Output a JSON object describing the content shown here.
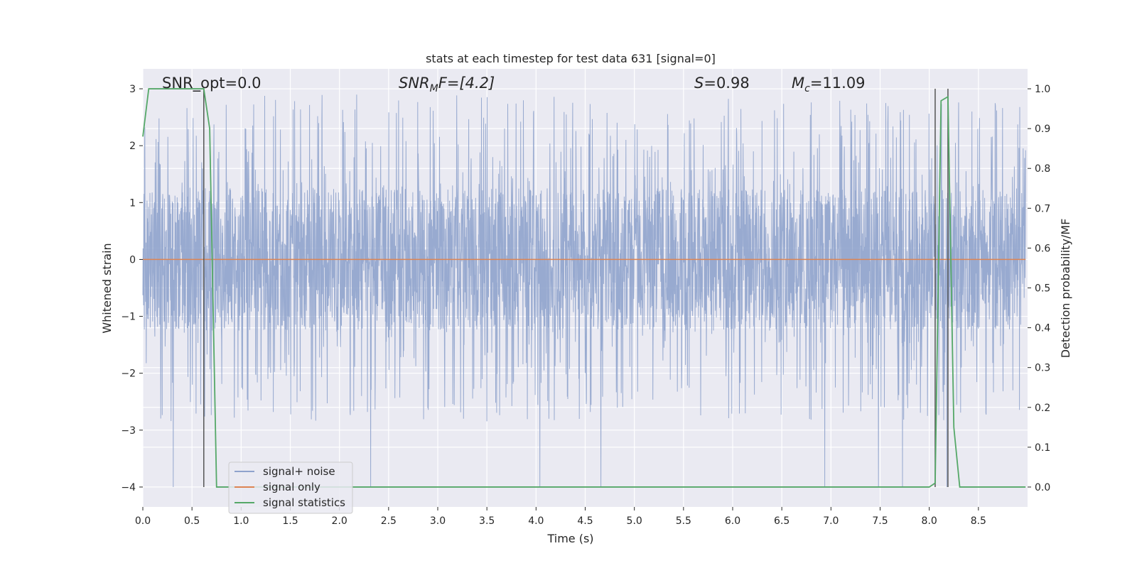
{
  "chart_data": {
    "type": "line",
    "title": "stats at each timestep for test data 631 [signal=0]",
    "xlabel": "Time (s)",
    "ylabel": "Whitened strain",
    "y2label": "Detection probability/MF",
    "xlim": [
      0.0,
      9.0
    ],
    "ylim": [
      -4.35,
      3.35
    ],
    "y2lim": [
      -0.05,
      1.05
    ],
    "xticks": [
      0.0,
      0.5,
      1.0,
      1.5,
      2.0,
      2.5,
      3.0,
      3.5,
      4.0,
      4.5,
      5.0,
      5.5,
      6.0,
      6.5,
      7.0,
      7.5,
      8.0,
      8.5
    ],
    "xtick_labels": [
      "0.0",
      "0.5",
      "1.0",
      "1.5",
      "2.0",
      "2.5",
      "3.0",
      "3.5",
      "4.0",
      "4.5",
      "5.0",
      "5.5",
      "6.0",
      "6.5",
      "7.0",
      "7.5",
      "8.0",
      "8.5"
    ],
    "yticks": [
      -4,
      -3,
      -2,
      -1,
      0,
      1,
      2,
      3
    ],
    "ytick_labels": [
      "−4",
      "−3",
      "−2",
      "−1",
      "0",
      "1",
      "2",
      "3"
    ],
    "y2ticks": [
      0.0,
      0.1,
      0.2,
      0.3,
      0.4,
      0.5,
      0.6,
      0.7,
      0.8,
      0.9,
      1.0
    ],
    "y2tick_labels": [
      "0.0",
      "0.1",
      "0.2",
      "0.3",
      "0.4",
      "0.5",
      "0.6",
      "0.7",
      "0.8",
      "0.9",
      "1.0"
    ],
    "grid": true,
    "legend": "lower-left",
    "annotations": {
      "snr_opt": "SNR_opt=0.0",
      "snr_mf_base": "SNR",
      "snr_mf_sub": "M",
      "snr_mf_rest": "F=[4.2]",
      "s_sym": "S",
      "s_val": "=0.98",
      "mc_sym": "M",
      "mc_sub": "c",
      "mc_val": "=11.09"
    },
    "series": [
      {
        "name": "signal+ noise",
        "color": "#8fa3cc",
        "axis": "left",
        "description_values": "dense noise, approx range [-4.0, 2.9]",
        "envelope": {
          "t_start": 0.0,
          "t_end": 8.98,
          "core_amplitude": 1.25,
          "peak_max": 2.9,
          "peak_min": -4.0
        }
      },
      {
        "name": "signal only",
        "color": "#dd8452",
        "axis": "left",
        "x": [
          0.0,
          8.98
        ],
        "y": [
          0.0,
          0.0
        ]
      },
      {
        "name": "signal statistics",
        "color": "#55a868",
        "axis": "right",
        "x": [
          0.0,
          0.06,
          0.12,
          0.62,
          0.68,
          0.75,
          8.0,
          8.06,
          8.12,
          8.19,
          8.25,
          8.31,
          8.38,
          8.44,
          8.5,
          8.98
        ],
        "y": [
          0.88,
          1.0,
          1.0,
          1.0,
          0.9,
          0.0,
          0.0,
          0.01,
          0.97,
          0.98,
          0.15,
          0.0,
          0.0,
          0.0,
          0.0,
          0.0
        ]
      }
    ],
    "vlines": [
      0.62,
      8.06,
      8.19
    ],
    "vline_color": "#555555"
  }
}
